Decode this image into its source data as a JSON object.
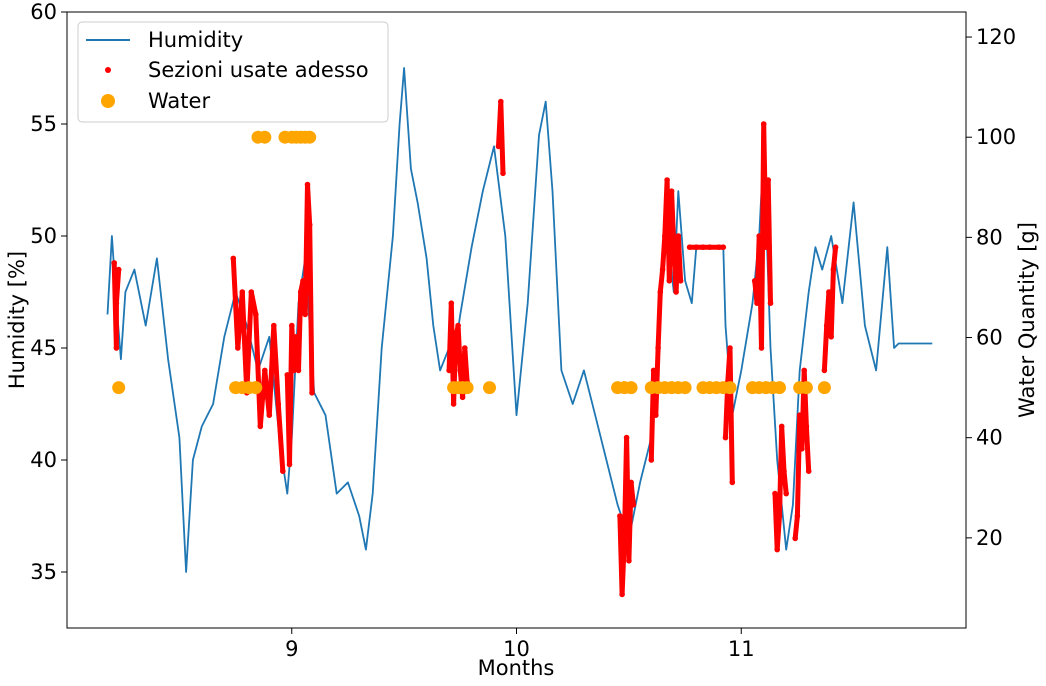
{
  "chart_data": {
    "type": "line",
    "xlabel": "Months",
    "ylabel": "Humidity [%]",
    "y2label": "Water Quantity [g]",
    "xlim": [
      8.0,
      12.0
    ],
    "ylim": [
      32.5,
      60.0
    ],
    "y2lim": [
      2.0,
      125.0
    ],
    "x_ticks": [
      9,
      10,
      11
    ],
    "y_ticks": [
      35,
      40,
      45,
      50,
      55,
      60
    ],
    "y2_ticks": [
      20,
      40,
      60,
      80,
      100,
      120
    ],
    "grid": false,
    "legend_position": "top-left",
    "colors": {
      "humidity": "#1f77b4",
      "sections": "#ff0000",
      "water": "#ffa500"
    },
    "series": [
      {
        "name": "Humidity",
        "kind": "line",
        "axis": "left",
        "x": [
          8.18,
          8.2,
          8.22,
          8.24,
          8.26,
          8.3,
          8.35,
          8.4,
          8.45,
          8.5,
          8.53,
          8.56,
          8.6,
          8.65,
          8.7,
          8.75,
          8.8,
          8.85,
          8.9,
          8.95,
          8.98,
          9.0,
          9.03,
          9.06,
          9.1,
          9.15,
          9.2,
          9.25,
          9.3,
          9.33,
          9.36,
          9.4,
          9.45,
          9.48,
          9.5,
          9.53,
          9.56,
          9.6,
          9.63,
          9.66,
          9.7,
          9.72,
          9.75,
          9.8,
          9.85,
          9.9,
          9.95,
          10.0,
          10.05,
          10.1,
          10.13,
          10.16,
          10.2,
          10.25,
          10.3,
          10.35,
          10.4,
          10.45,
          10.5,
          10.55,
          10.6,
          10.63,
          10.66,
          10.7,
          10.72,
          10.75,
          10.78,
          10.8,
          10.84,
          10.88,
          10.92,
          10.93,
          10.96,
          11.0,
          11.05,
          11.08,
          11.1,
          11.13,
          11.16,
          11.2,
          11.23,
          11.26,
          11.3,
          11.33,
          11.36,
          11.4,
          11.45,
          11.5,
          11.55,
          11.6,
          11.65,
          11.68,
          11.7,
          11.75,
          11.8,
          11.85
        ],
        "y": [
          46.5,
          50.0,
          47.0,
          44.5,
          47.5,
          48.5,
          46.0,
          49.0,
          44.5,
          41.0,
          35.0,
          40.0,
          41.5,
          42.5,
          45.5,
          47.5,
          46.0,
          44.0,
          45.5,
          40.5,
          38.5,
          41.0,
          47.0,
          49.0,
          43.0,
          42.0,
          38.5,
          39.0,
          37.5,
          36.0,
          38.5,
          45.0,
          50.0,
          55.0,
          57.5,
          53.0,
          51.5,
          49.0,
          46.0,
          44.0,
          45.0,
          44.5,
          46.5,
          49.5,
          52.0,
          54.0,
          50.0,
          42.0,
          47.0,
          54.5,
          56.0,
          52.0,
          44.0,
          42.5,
          44.0,
          42.0,
          40.0,
          38.0,
          36.5,
          39.0,
          41.0,
          45.0,
          51.0,
          47.5,
          52.0,
          48.0,
          47.0,
          49.5,
          49.5,
          49.5,
          49.5,
          46.0,
          42.0,
          44.0,
          47.0,
          50.0,
          54.0,
          45.0,
          40.0,
          36.0,
          38.0,
          44.0,
          47.5,
          49.5,
          48.5,
          50.0,
          47.0,
          51.5,
          46.0,
          44.0,
          49.5,
          45.0,
          45.2,
          45.2,
          45.2,
          45.2
        ]
      },
      {
        "name": "Sezioni usate adesso",
        "kind": "points",
        "axis": "left",
        "segments": [
          {
            "x": [
              8.21,
              8.22,
              8.22,
              8.23
            ],
            "y": [
              48.8,
              45.0,
              47.0,
              48.5
            ]
          },
          {
            "x": [
              8.74,
              8.76,
              8.78,
              8.8,
              8.82,
              8.84,
              8.86,
              8.88,
              8.9,
              8.92,
              8.94,
              8.96
            ],
            "y": [
              49.0,
              45.0,
              47.5,
              43.0,
              47.5,
              46.5,
              41.5,
              44.0,
              42.0,
              46.0,
              42.5,
              39.5
            ]
          },
          {
            "x": [
              8.98,
              8.99,
              9.0,
              9.01,
              9.02,
              9.03,
              9.04,
              9.05,
              9.06,
              9.07,
              9.08,
              9.09
            ],
            "y": [
              43.8,
              39.8,
              46.0,
              44.0,
              45.5,
              44.0,
              47.5,
              48.0,
              46.5,
              52.3,
              50.5,
              43.0
            ]
          },
          {
            "x": [
              9.7,
              9.71,
              9.72,
              9.73,
              9.74,
              9.75,
              9.76,
              9.77,
              9.78
            ],
            "y": [
              44.0,
              47.0,
              42.5,
              45.5,
              46.0,
              44.0,
              42.8,
              45.0,
              43.5
            ]
          },
          {
            "x": [
              9.92,
              9.93,
              9.94
            ],
            "y": [
              54.0,
              56.0,
              52.8
            ]
          },
          {
            "x": [
              10.46,
              10.47,
              10.48,
              10.49,
              10.5,
              10.51,
              10.52
            ],
            "y": [
              37.5,
              34.0,
              36.5,
              41.0,
              35.5,
              39.0,
              38.0
            ]
          },
          {
            "x": [
              10.6,
              10.61,
              10.62,
              10.63,
              10.64,
              10.65,
              10.66,
              10.67,
              10.68,
              10.69,
              10.7,
              10.71,
              10.72,
              10.73
            ],
            "y": [
              40.0,
              44.0,
              42.0,
              45.0,
              47.5,
              48.5,
              50.0,
              52.5,
              48.0,
              52.0,
              49.5,
              47.5,
              50.0,
              48.0
            ]
          },
          {
            "x": [
              10.77,
              10.8,
              10.83,
              10.86,
              10.9,
              10.92
            ],
            "y": [
              49.5,
              49.5,
              49.5,
              49.5,
              49.5,
              49.5
            ]
          },
          {
            "x": [
              10.93,
              10.94,
              10.95,
              10.96
            ],
            "y": [
              41.0,
              43.5,
              45.0,
              39.0
            ]
          },
          {
            "x": [
              11.06,
              11.07,
              11.08,
              11.09,
              11.1,
              11.11,
              11.12,
              11.13
            ],
            "y": [
              48.0,
              47.0,
              50.0,
              45.0,
              55.0,
              49.5,
              52.5,
              47.0
            ]
          },
          {
            "x": [
              11.15,
              11.16,
              11.17,
              11.18,
              11.19,
              11.2
            ],
            "y": [
              38.5,
              36.0,
              37.5,
              41.5,
              39.5,
              38.5
            ]
          },
          {
            "x": [
              11.24,
              11.25,
              11.26,
              11.27,
              11.28,
              11.29,
              11.3
            ],
            "y": [
              36.5,
              37.5,
              42.0,
              40.5,
              44.0,
              41.5,
              39.5
            ]
          },
          {
            "x": [
              11.37,
              11.38,
              11.39,
              11.4,
              11.41,
              11.42
            ],
            "y": [
              44.0,
              46.0,
              47.5,
              45.5,
              48.5,
              49.5
            ]
          }
        ]
      },
      {
        "name": "Water",
        "kind": "points",
        "axis": "right",
        "x": [
          8.23,
          8.75,
          8.78,
          8.81,
          8.84,
          8.85,
          8.88,
          8.97,
          9.0,
          9.02,
          9.04,
          9.06,
          9.08,
          9.72,
          9.74,
          9.76,
          9.78,
          9.88,
          10.45,
          10.48,
          10.51,
          10.6,
          10.63,
          10.66,
          10.69,
          10.72,
          10.75,
          10.83,
          10.86,
          10.89,
          10.92,
          10.95,
          11.05,
          11.08,
          11.11,
          11.14,
          11.17,
          11.26,
          11.29,
          11.37
        ],
        "y": [
          50,
          50,
          50,
          50,
          50,
          100,
          100,
          100,
          100,
          100,
          100,
          100,
          100,
          50,
          50,
          50,
          50,
          50,
          50,
          50,
          50,
          50,
          50,
          50,
          50,
          50,
          50,
          50,
          50,
          50,
          50,
          50,
          50,
          50,
          50,
          50,
          50,
          50,
          50,
          50
        ]
      }
    ]
  }
}
